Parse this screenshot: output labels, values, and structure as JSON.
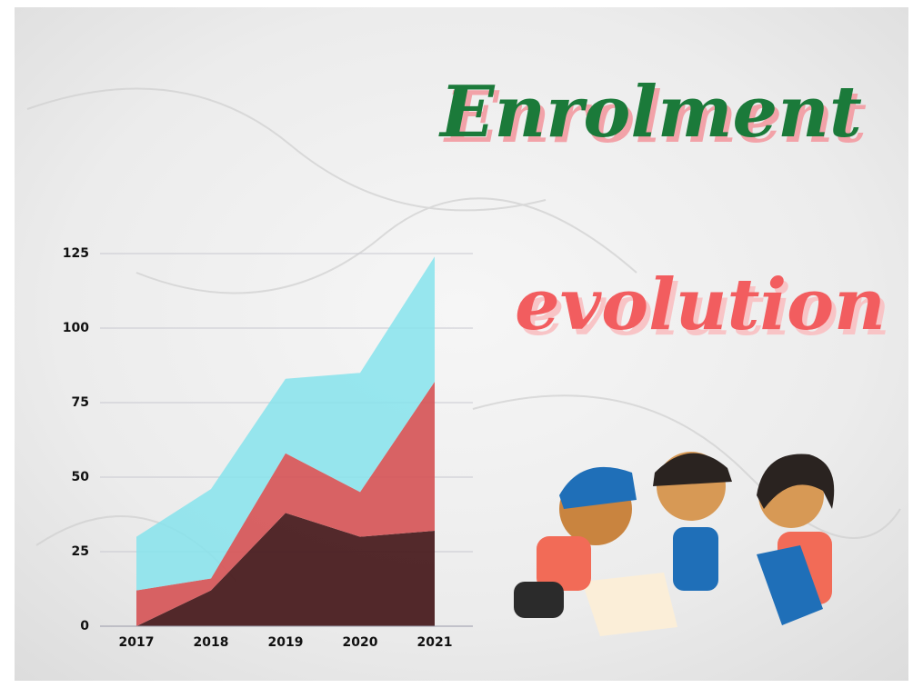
{
  "chart_data": {
    "type": "stacked-area",
    "title": [
      "Enrolment",
      "evolution"
    ],
    "categories": [
      "2017",
      "2018",
      "2019",
      "2020",
      "2021"
    ],
    "series": [
      {
        "color": "#4a1e20",
        "values": [
          0,
          12,
          38,
          30,
          32
        ]
      },
      {
        "color": "#d65a5c",
        "values": [
          12,
          4,
          20,
          15,
          50
        ]
      },
      {
        "color": "#86e3ec",
        "values": [
          18,
          30,
          25,
          40,
          42
        ]
      }
    ],
    "ylim": [
      0,
      125
    ],
    "yticks": [
      0,
      25,
      50,
      75,
      100,
      125
    ],
    "grid": true
  }
}
